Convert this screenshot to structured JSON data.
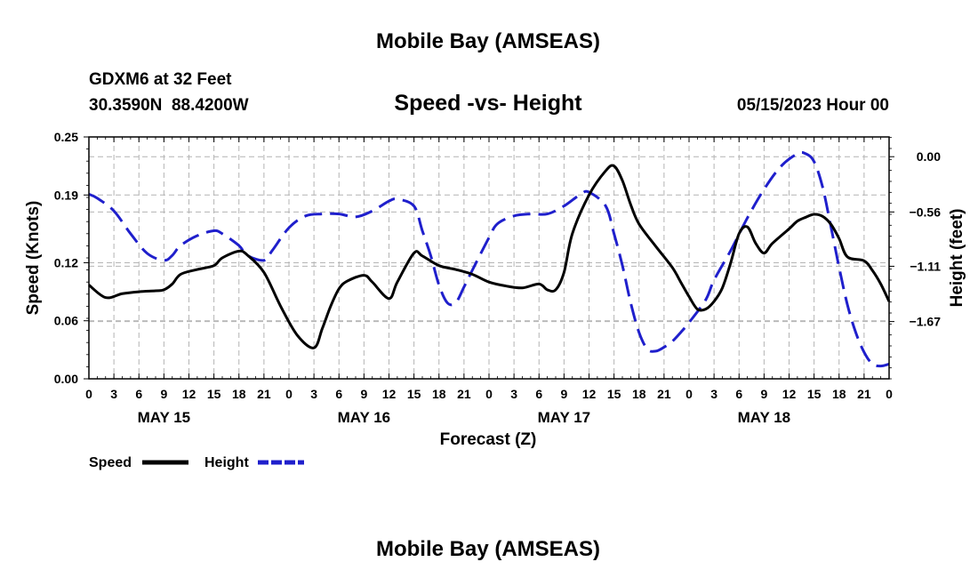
{
  "page": {
    "top_title": "Mobile Bay (AMSEAS)",
    "bottom_title": "Mobile Bay (AMSEAS)"
  },
  "chart_data": {
    "type": "line",
    "title": "Speed -vs- Height",
    "station": "GDXM6 at 32 Feet",
    "coords": "30.3590N  88.4200W",
    "datetime": "05/15/2023 Hour 00",
    "xlabel": "Forecast (Z)",
    "ylabel_left": "Speed (Knots)",
    "ylabel_right": "Height (feet)",
    "x_range_hours": [
      0,
      96
    ],
    "x_tick_step_hours": 3,
    "x_tick_labels": [
      "0",
      "3",
      "6",
      "9",
      "12",
      "15",
      "18",
      "21",
      "0",
      "3",
      "6",
      "9",
      "12",
      "15",
      "18",
      "21",
      "0",
      "3",
      "6",
      "9",
      "12",
      "15",
      "18",
      "21",
      "0",
      "3",
      "6",
      "9",
      "12",
      "15",
      "18",
      "21",
      "0"
    ],
    "day_labels": [
      {
        "label": "MAY 15",
        "hour": 9
      },
      {
        "label": "MAY 16",
        "hour": 33
      },
      {
        "label": "MAY 17",
        "hour": 57
      },
      {
        "label": "MAY 18",
        "hour": 81
      }
    ],
    "y_left": {
      "range": [
        0,
        0.25
      ],
      "ticks": [
        0.0,
        0.06,
        0.12,
        0.19,
        0.25
      ],
      "tick_labels": [
        "0.00",
        "0.06",
        "0.12",
        "0.19",
        "0.25"
      ]
    },
    "y_right": {
      "range": [
        -2.25,
        0.2
      ],
      "ticks": [
        0.0,
        -0.56,
        -1.11,
        -1.67
      ],
      "tick_labels": [
        "0.00",
        "−0.56",
        "−1.11",
        "−1.67"
      ]
    },
    "grid": true,
    "legend": [
      {
        "name": "Speed",
        "color": "#000000",
        "style": "solid"
      },
      {
        "name": "Height",
        "color": "#1f1fcc",
        "style": "dashed"
      }
    ],
    "series": [
      {
        "name": "Speed",
        "axis": "left",
        "color": "#000000",
        "x": [
          0,
          2,
          4,
          6,
          8,
          9,
          10,
          11,
          13,
          15,
          16,
          18,
          19,
          21,
          23,
          25,
          27,
          28,
          29,
          30,
          31,
          33,
          34,
          36,
          37,
          39,
          40,
          42,
          44,
          46,
          48,
          50,
          52,
          54,
          55,
          56,
          57,
          58,
          60,
          62,
          63,
          64,
          65,
          66,
          68,
          70,
          71,
          72,
          73,
          74,
          75,
          76,
          77,
          78,
          79,
          80,
          81,
          82,
          84,
          85,
          86,
          87,
          88,
          89,
          90,
          91,
          93,
          94,
          95,
          96
        ],
        "y": [
          0.097,
          0.084,
          0.088,
          0.09,
          0.091,
          0.092,
          0.098,
          0.108,
          0.113,
          0.117,
          0.125,
          0.132,
          0.128,
          0.11,
          0.075,
          0.045,
          0.032,
          0.052,
          0.075,
          0.093,
          0.101,
          0.107,
          0.1,
          0.083,
          0.1,
          0.13,
          0.127,
          0.117,
          0.113,
          0.108,
          0.1,
          0.096,
          0.094,
          0.098,
          0.092,
          0.092,
          0.11,
          0.15,
          0.19,
          0.215,
          0.22,
          0.205,
          0.18,
          0.16,
          0.137,
          0.115,
          0.1,
          0.085,
          0.072,
          0.072,
          0.08,
          0.094,
          0.12,
          0.15,
          0.157,
          0.14,
          0.13,
          0.14,
          0.155,
          0.163,
          0.167,
          0.17,
          0.168,
          0.16,
          0.145,
          0.126,
          0.122,
          0.112,
          0.098,
          0.08
        ]
      },
      {
        "name": "Height",
        "axis": "right",
        "color": "#1f1fcc",
        "x": [
          0,
          1,
          3,
          5,
          7,
          9,
          10,
          11,
          13,
          15,
          16,
          18,
          19,
          21,
          22,
          24,
          26,
          28,
          30,
          32,
          34,
          36,
          37,
          39,
          40,
          41,
          42,
          43,
          44,
          45,
          46,
          48,
          49,
          51,
          53,
          55,
          57,
          59,
          60,
          62,
          63,
          64,
          65,
          66,
          67,
          68,
          69,
          70,
          71,
          72,
          74,
          75,
          77,
          79,
          81,
          83,
          85,
          86,
          87,
          88,
          89,
          90,
          91,
          92,
          93,
          94,
          95,
          96
        ],
        "y": [
          -0.38,
          -0.42,
          -0.55,
          -0.78,
          -0.98,
          -1.05,
          -1.0,
          -0.9,
          -0.8,
          -0.75,
          -0.78,
          -0.9,
          -1.0,
          -1.05,
          -0.95,
          -0.72,
          -0.6,
          -0.58,
          -0.58,
          -0.61,
          -0.55,
          -0.45,
          -0.43,
          -0.5,
          -0.75,
          -1.0,
          -1.3,
          -1.48,
          -1.48,
          -1.32,
          -1.15,
          -0.82,
          -0.68,
          -0.6,
          -0.58,
          -0.58,
          -0.5,
          -0.38,
          -0.36,
          -0.5,
          -0.78,
          -1.1,
          -1.48,
          -1.78,
          -1.95,
          -1.97,
          -1.93,
          -1.87,
          -1.78,
          -1.68,
          -1.45,
          -1.25,
          -0.95,
          -0.62,
          -0.33,
          -0.1,
          0.03,
          0.03,
          -0.05,
          -0.3,
          -0.7,
          -1.12,
          -1.5,
          -1.78,
          -1.98,
          -2.1,
          -2.12,
          -2.1
        ]
      }
    ]
  }
}
